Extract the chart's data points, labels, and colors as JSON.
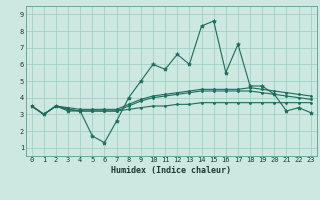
{
  "xlabel": "Humidex (Indice chaleur)",
  "xlim": [
    -0.5,
    23.5
  ],
  "ylim": [
    0.5,
    9.5
  ],
  "xticks": [
    0,
    1,
    2,
    3,
    4,
    5,
    6,
    7,
    8,
    9,
    10,
    11,
    12,
    13,
    14,
    15,
    16,
    17,
    18,
    19,
    20,
    21,
    22,
    23
  ],
  "yticks": [
    1,
    2,
    3,
    4,
    5,
    6,
    7,
    8,
    9
  ],
  "background_color": "#cce8e0",
  "grid_color": "#99ccc4",
  "line_color": "#1a6b5c",
  "line1_y": [
    3.5,
    3.0,
    3.5,
    3.2,
    3.2,
    1.7,
    1.3,
    2.6,
    4.0,
    5.0,
    6.0,
    5.7,
    6.6,
    6.0,
    8.3,
    8.6,
    5.5,
    7.2,
    4.7,
    4.7,
    4.2,
    3.2,
    3.4,
    3.1
  ],
  "line2_y": [
    3.5,
    3.0,
    3.5,
    3.3,
    3.2,
    3.2,
    3.2,
    3.2,
    3.3,
    3.4,
    3.5,
    3.5,
    3.6,
    3.6,
    3.7,
    3.7,
    3.7,
    3.7,
    3.7,
    3.7,
    3.7,
    3.7,
    3.7,
    3.7
  ],
  "line3_y": [
    3.5,
    3.0,
    3.5,
    3.3,
    3.2,
    3.2,
    3.2,
    3.2,
    3.5,
    3.8,
    4.0,
    4.1,
    4.2,
    4.3,
    4.4,
    4.4,
    4.4,
    4.4,
    4.4,
    4.3,
    4.2,
    4.1,
    4.0,
    3.9
  ],
  "line4_y": [
    3.5,
    3.0,
    3.5,
    3.4,
    3.3,
    3.3,
    3.3,
    3.3,
    3.6,
    3.9,
    4.1,
    4.2,
    4.3,
    4.4,
    4.5,
    4.5,
    4.5,
    4.5,
    4.6,
    4.5,
    4.4,
    4.3,
    4.2,
    4.1
  ],
  "tick_fontsize": 5.0,
  "xlabel_fontsize": 6.0
}
